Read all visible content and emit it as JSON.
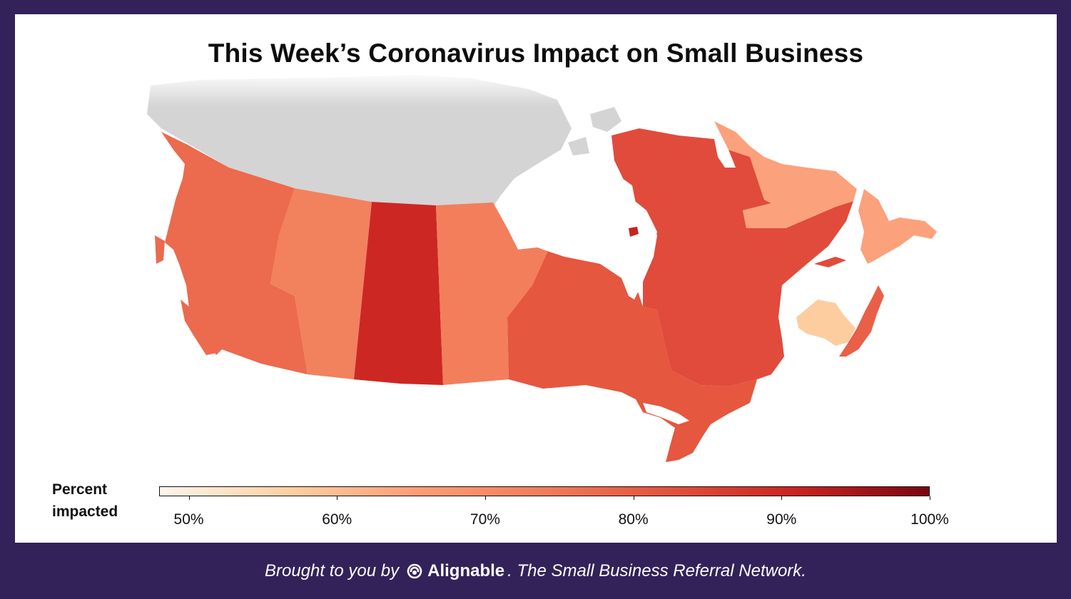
{
  "title": "This Week’s Coronavirus Impact on Small Business",
  "legend": {
    "label_line1": "Percent",
    "label_line2": "impacted",
    "min": 48,
    "max": 100,
    "colors": [
      "#fff5eb",
      "#fdd0a2",
      "#fc9e76",
      "#f07d5a",
      "#e2503b",
      "#c8221f",
      "#7a0610"
    ],
    "ticks": [
      "50%",
      "60%",
      "70%",
      "80%",
      "90%",
      "100%"
    ],
    "tick_values": [
      50,
      60,
      70,
      80,
      90,
      100
    ]
  },
  "regions": [
    {
      "name": "British Columbia",
      "color": "#ec6a4d"
    },
    {
      "name": "Alberta",
      "color": "#f2815e"
    },
    {
      "name": "Saskatchewan",
      "color": "#cd2723"
    },
    {
      "name": "Manitoba",
      "color": "#f27e5c"
    },
    {
      "name": "Ontario",
      "color": "#e5573f"
    },
    {
      "name": "Quebec",
      "color": "#e14b3b"
    },
    {
      "name": "Newfoundland and Labrador",
      "color": "#fba17c"
    },
    {
      "name": "New Brunswick",
      "color": "#fdcda0"
    },
    {
      "name": "Nova Scotia",
      "color": "#ea5f47"
    },
    {
      "name": "Territories",
      "color": "#d4d4d4"
    }
  ],
  "footer": {
    "prefix": "Brought to you by",
    "brand": "Alignable",
    "suffix": ". The Small Business Referral Network."
  },
  "colors": {
    "background": "#33225a",
    "card": "#ffffff"
  }
}
